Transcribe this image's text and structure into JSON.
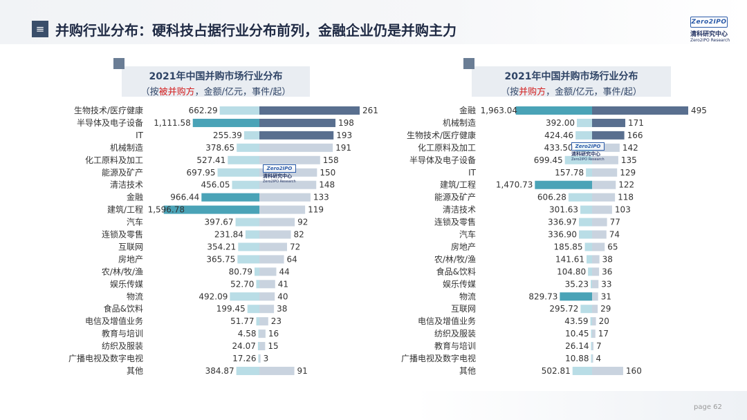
{
  "header": {
    "menu_icon": "≡",
    "title": "并购行业分布：硬科技占据行业分布前列，金融企业仍是并购主力"
  },
  "logo": {
    "box_text": "Zero2IPO",
    "cn": "清科研究中心",
    "en": "Zero2IPO Research"
  },
  "footer": {
    "page_label": "page  62"
  },
  "colors": {
    "amount_light": "#b9dde6",
    "amount_highlight": "#4aa3b7",
    "count_light": "#c9d3df",
    "count_dark": "#596f8f"
  },
  "chart_data": [
    {
      "type": "bar",
      "title_line1": "2021年中国并购市场行业分布",
      "title_line2_pre": "（按",
      "title_line2_red": "被并购方",
      "title_line2_post": "，金额/亿元，事件/起）",
      "categories": [
        "生物技术/医疗健康",
        "半导体及电子设备",
        "IT",
        "机械制造",
        "化工原料及加工",
        "能源及矿产",
        "清洁技术",
        "金融",
        "建筑/工程",
        "汽车",
        "连锁及零售",
        "互联网",
        "房地产",
        "农/林/牧/渔",
        "娱乐传媒",
        "物流",
        "食品&饮料",
        "电信及增值业务",
        "教育与培训",
        "纺织及服装",
        "广播电视及数字电视",
        "其他"
      ],
      "amount_labels": [
        "662.29",
        "1,111.58",
        "255.39",
        "378.65",
        "527.41",
        "697.95",
        "456.05",
        "966.44",
        "1,596.78",
        "397.67",
        "231.84",
        "354.21",
        "365.75",
        "80.79",
        "52.70",
        "492.09",
        "199.45",
        "51.77",
        "4.58",
        "24.07",
        "17.26",
        "384.87"
      ],
      "amounts": [
        662.29,
        1111.58,
        255.39,
        378.65,
        527.41,
        697.95,
        456.05,
        966.44,
        1596.78,
        397.67,
        231.84,
        354.21,
        365.75,
        80.79,
        52.7,
        492.09,
        199.45,
        51.77,
        4.58,
        24.07,
        17.26,
        384.87
      ],
      "amount_highlight": [
        false,
        true,
        false,
        false,
        false,
        false,
        false,
        true,
        true,
        false,
        false,
        false,
        false,
        false,
        false,
        false,
        false,
        false,
        false,
        false,
        false,
        false
      ],
      "counts": [
        261,
        198,
        193,
        191,
        158,
        150,
        148,
        133,
        119,
        92,
        82,
        72,
        64,
        44,
        41,
        40,
        38,
        23,
        16,
        15,
        3,
        91
      ],
      "count_dark": [
        true,
        true,
        true,
        false,
        false,
        false,
        false,
        false,
        false,
        false,
        false,
        false,
        false,
        false,
        false,
        false,
        false,
        false,
        false,
        false,
        false,
        false
      ]
    },
    {
      "type": "bar",
      "title_line1": "2021年中国并购市场行业分布",
      "title_line2_pre": "（按",
      "title_line2_red": "并购方",
      "title_line2_post": "，金额/亿元，事件/起）",
      "categories": [
        "金融",
        "机械制造",
        "生物技术/医疗健康",
        "化工原料及加工",
        "半导体及电子设备",
        "IT",
        "建筑/工程",
        "能源及矿产",
        "清洁技术",
        "连锁及零售",
        "汽车",
        "房地产",
        "农/林/牧/渔",
        "食品&饮料",
        "娱乐传媒",
        "物流",
        "互联网",
        "电信及增值业务",
        "纺织及服装",
        "教育与培训",
        "广播电视及数字电视",
        "其他"
      ],
      "amount_labels": [
        "1,963.04",
        "392.00",
        "424.46",
        "433.50",
        "699.45",
        "157.78",
        "1,470.73",
        "606.28",
        "301.63",
        "336.97",
        "336.90",
        "185.85",
        "141.61",
        "104.80",
        "35.23",
        "829.73",
        "295.72",
        "43.59",
        "10.45",
        "26.14",
        "10.88",
        "502.81"
      ],
      "amounts": [
        1963.04,
        392.0,
        424.46,
        433.5,
        699.45,
        157.78,
        1470.73,
        606.28,
        301.63,
        336.97,
        336.9,
        185.85,
        141.61,
        104.8,
        35.23,
        829.73,
        295.72,
        43.59,
        10.45,
        26.14,
        10.88,
        502.81
      ],
      "amount_highlight": [
        true,
        false,
        false,
        false,
        false,
        false,
        true,
        false,
        false,
        false,
        false,
        false,
        false,
        false,
        false,
        true,
        false,
        false,
        false,
        false,
        false,
        false
      ],
      "counts": [
        495,
        171,
        166,
        142,
        135,
        129,
        122,
        118,
        103,
        77,
        74,
        65,
        38,
        36,
        33,
        31,
        29,
        20,
        17,
        7,
        4,
        160
      ],
      "count_dark": [
        true,
        true,
        true,
        false,
        false,
        false,
        false,
        false,
        false,
        false,
        false,
        false,
        false,
        false,
        false,
        false,
        false,
        false,
        false,
        false,
        false,
        false
      ]
    }
  ]
}
